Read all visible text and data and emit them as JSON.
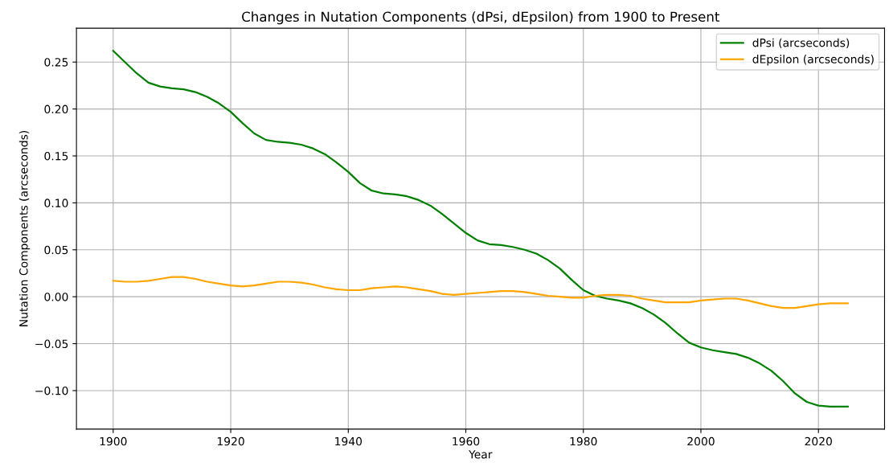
{
  "chart_data": {
    "type": "line",
    "title": "Changes in Nutation Components (dPsi, dEpsilon) from 1900 to Present",
    "xlabel": "Year",
    "ylabel": "Nutation Components (arcseconds)",
    "x": [
      1900,
      1902,
      1904,
      1906,
      1908,
      1910,
      1912,
      1914,
      1916,
      1918,
      1920,
      1922,
      1924,
      1926,
      1928,
      1930,
      1932,
      1934,
      1936,
      1938,
      1940,
      1942,
      1944,
      1946,
      1948,
      1950,
      1952,
      1954,
      1956,
      1958,
      1960,
      1962,
      1964,
      1966,
      1968,
      1970,
      1972,
      1974,
      1976,
      1978,
      1980,
      1982,
      1984,
      1986,
      1988,
      1990,
      1992,
      1994,
      1996,
      1998,
      2000,
      2002,
      2004,
      2006,
      2008,
      2010,
      2012,
      2014,
      2016,
      2018,
      2020,
      2022,
      2024,
      2025
    ],
    "series": [
      {
        "name": "dPsi (arcseconds)",
        "color": "#008000",
        "values": [
          0.262,
          0.25,
          0.238,
          0.228,
          0.224,
          0.222,
          0.221,
          0.218,
          0.213,
          0.206,
          0.197,
          0.185,
          0.174,
          0.167,
          0.165,
          0.164,
          0.162,
          0.158,
          0.152,
          0.143,
          0.133,
          0.121,
          0.113,
          0.11,
          0.109,
          0.107,
          0.103,
          0.097,
          0.088,
          0.078,
          0.068,
          0.06,
          0.056,
          0.055,
          0.053,
          0.05,
          0.046,
          0.039,
          0.03,
          0.018,
          0.007,
          0.001,
          -0.002,
          -0.004,
          -0.007,
          -0.012,
          -0.019,
          -0.028,
          -0.039,
          -0.049,
          -0.054,
          -0.057,
          -0.059,
          -0.061,
          -0.065,
          -0.071,
          -0.079,
          -0.09,
          -0.103,
          -0.112,
          -0.116,
          -0.117,
          -0.117,
          -0.117
        ]
      },
      {
        "name": "dEpsilon (arcseconds)",
        "color": "#ffa500",
        "values": [
          0.017,
          0.016,
          0.016,
          0.017,
          0.019,
          0.021,
          0.021,
          0.019,
          0.016,
          0.014,
          0.012,
          0.011,
          0.012,
          0.014,
          0.016,
          0.016,
          0.015,
          0.013,
          0.01,
          0.008,
          0.007,
          0.007,
          0.009,
          0.01,
          0.011,
          0.01,
          0.008,
          0.006,
          0.003,
          0.002,
          0.003,
          0.004,
          0.005,
          0.006,
          0.006,
          0.005,
          0.003,
          0.001,
          0.0,
          -0.001,
          -0.001,
          0.001,
          0.002,
          0.002,
          0.001,
          -0.002,
          -0.004,
          -0.006,
          -0.006,
          -0.006,
          -0.004,
          -0.003,
          -0.002,
          -0.002,
          -0.004,
          -0.007,
          -0.01,
          -0.012,
          -0.012,
          -0.01,
          -0.008,
          -0.007,
          -0.007,
          -0.007
        ]
      }
    ],
    "xlim": [
      1893.75,
      2031.25
    ],
    "xticks": [
      1900,
      1920,
      1940,
      1960,
      1980,
      2000,
      2020
    ],
    "ylim": [
      -0.141,
      0.286
    ],
    "yticks": [
      {
        "value": -0.1,
        "label": "−0.10"
      },
      {
        "value": -0.05,
        "label": "−0.05"
      },
      {
        "value": 0,
        "label": "0.00"
      },
      {
        "value": 0.05,
        "label": "0.05"
      },
      {
        "value": 0.1,
        "label": "0.10"
      },
      {
        "value": 0.15,
        "label": "0.15"
      },
      {
        "value": 0.2,
        "label": "0.20"
      },
      {
        "value": 0.25,
        "label": "0.25"
      }
    ],
    "grid": true,
    "legend": "top right",
    "marker": "none",
    "line_style": "solid"
  }
}
